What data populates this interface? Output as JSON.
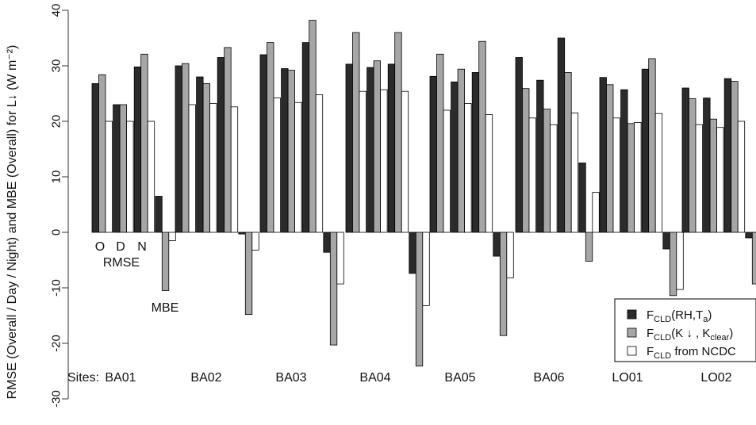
{
  "chart_data": {
    "type": "bar",
    "ylabel": "RMSE (Overall / Day / Night) and MBE (Overall) for L↓ (W m⁻²)",
    "ylim": [
      -30,
      40
    ],
    "yticks": [
      -30,
      -20,
      -10,
      0,
      10,
      20,
      30,
      40
    ],
    "y_tick_labels": [
      "-30",
      "-20",
      "-10",
      "0",
      "10",
      "20",
      "30",
      "40"
    ],
    "sites_label": "Sites:",
    "sites": [
      "BA01",
      "BA02",
      "BA03",
      "BA04",
      "BA05",
      "BA06",
      "LO01",
      "LO02"
    ],
    "groups": [
      "O",
      "D",
      "N",
      "MBE"
    ],
    "annotations": {
      "o": "O",
      "d": "D",
      "n": "N",
      "rmse": "RMSE",
      "mbe": "MBE"
    },
    "series": [
      {
        "name": "F_CLD(RH,T_a)",
        "color": "#2b2b2b",
        "values": [
          [
            26.8,
            23.0,
            29.8,
            6.5
          ],
          [
            30.0,
            28.0,
            31.5,
            -0.3
          ],
          [
            32.0,
            29.5,
            34.2,
            -3.6
          ],
          [
            30.3,
            29.7,
            30.3,
            -7.4
          ],
          [
            28.1,
            27.1,
            28.8,
            -4.3
          ],
          [
            31.5,
            27.4,
            35.0,
            12.5
          ],
          [
            27.9,
            25.7,
            29.4,
            -3.0
          ],
          [
            26.0,
            24.2,
            27.7,
            -1.0
          ]
        ]
      },
      {
        "name": "F_CLD(K↓, K_clear)",
        "color": "#a6a6a6",
        "values": [
          [
            28.4,
            23.0,
            32.1,
            -10.5
          ],
          [
            30.4,
            26.8,
            33.3,
            -14.8
          ],
          [
            34.2,
            29.2,
            38.2,
            -20.3
          ],
          [
            36.0,
            30.9,
            36.0,
            -24.1
          ],
          [
            32.1,
            29.4,
            34.4,
            -18.6
          ],
          [
            25.9,
            22.2,
            28.8,
            -5.2
          ],
          [
            26.6,
            19.6,
            31.3,
            -11.4
          ],
          [
            24.1,
            20.4,
            27.2,
            -9.3
          ]
        ]
      },
      {
        "name": "F_CLD from NCDC",
        "color": "#ffffff",
        "values": [
          [
            20.0,
            20.0,
            20.0,
            -1.5
          ],
          [
            23.0,
            23.2,
            22.6,
            -3.2
          ],
          [
            24.2,
            23.4,
            24.8,
            -9.3
          ],
          [
            25.4,
            25.7,
            25.4,
            -13.2
          ],
          [
            22.0,
            23.2,
            21.2,
            -8.2
          ],
          [
            20.6,
            19.4,
            21.5,
            7.2
          ],
          [
            20.6,
            19.8,
            21.4,
            -10.3
          ],
          [
            19.4,
            18.9,
            20.0,
            null
          ]
        ]
      }
    ],
    "legend": {
      "position": "bottom-right",
      "entries": [
        {
          "main": "F",
          "sub": "CLD",
          "rest": "(RH,T",
          "sub2": "a",
          "end": ")"
        },
        {
          "main": "F",
          "sub": "CLD",
          "rest": "(K ↓ , K",
          "sub2": "clear",
          "end": ")"
        },
        {
          "main": "F",
          "sub": "CLD",
          "rest": " from NCDC",
          "sub2": "",
          "end": ""
        }
      ]
    }
  }
}
